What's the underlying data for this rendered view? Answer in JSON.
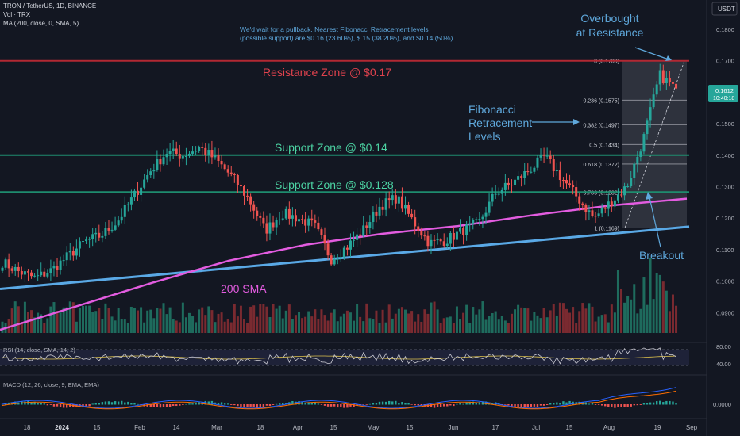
{
  "header": {
    "symbol_line": "TRON / TetherUS, 1D, BINANCE",
    "vol_line": "Vol · TRX",
    "ma_line": "MA (200, close, 0, SMA, 5)",
    "currency_badge": "USDT"
  },
  "annotations": {
    "note_line1": "We'd wait for a pullback. Nearest Fibonacci Retracement levels",
    "note_line2": "(possible support) are $0.16 (23.60%), $.15 (38.20%), and $0.14 (50%).",
    "overbought_line1": "Overbought",
    "overbought_line2": "at Resistance",
    "resistance_label": "Resistance Zone @ $0.17",
    "support1_label": "Support Zone @ $0.14",
    "support2_label": "Support Zone @ $0.128",
    "fib_line1": "Fibonacci",
    "fib_line2": "Retracement",
    "fib_line3": "Levels",
    "breakout": "Breakout",
    "sma_label": "200 SMA"
  },
  "price_badge": {
    "price": "0.1612",
    "countdown": "10:40:18"
  },
  "rsi_panel": {
    "label": "RSI (14, close, SMA, 14, 2)",
    "ticks": [
      "80.00",
      "40.00"
    ]
  },
  "macd_panel": {
    "label": "MACD (12, 26, close, 9, EMA, EMA)",
    "ticks": [
      "0.0000"
    ]
  },
  "colors": {
    "background": "#131722",
    "up": "#26a69a",
    "down": "#ef5350",
    "resistance": "#b22833",
    "support": "#1e8c6e",
    "support_label": "#4cd3a3",
    "annotation": "#5fa8dc",
    "sma": "#e35ce0",
    "trendline": "#5aa9e6",
    "volume_up": "#1e6b5d",
    "volume_down": "#7a2a30"
  },
  "chart_data": {
    "type": "candlestick",
    "x_tick_labels": [
      "18",
      "2024",
      "15",
      "Feb",
      "14",
      "Mar",
      "18",
      "Apr",
      "15",
      "May",
      "15",
      "Jun",
      "17",
      "Jul",
      "15",
      "Aug",
      "19",
      "Sep"
    ],
    "y_tick_labels": [
      "0.1800",
      "0.1700",
      "0.1600",
      "0.1500",
      "0.1400",
      "0.1300",
      "0.1200",
      "0.1100",
      "0.1000",
      "0.0900"
    ],
    "ylim": [
      0.083,
      0.183
    ],
    "grid": false,
    "series": [
      {
        "name": "TRON / TetherUS",
        "anchor_closes": [
          0.106,
          0.103,
          0.101,
          0.1035,
          0.108,
          0.1125,
          0.1145,
          0.119,
          0.127,
          0.135,
          0.141,
          0.14,
          0.1425,
          0.1385,
          0.133,
          0.126,
          0.116,
          0.1215,
          0.12,
          0.1175,
          0.107,
          0.111,
          0.1165,
          0.124,
          0.1265,
          0.119,
          0.112,
          0.113,
          0.116,
          0.1185,
          0.128,
          0.131,
          0.135,
          0.1395,
          0.133,
          0.1265,
          0.12,
          0.125,
          0.13,
          0.145,
          0.1655,
          0.161
        ],
        "last_close": 0.1612
      },
      {
        "name": "MA (200, close, 0, SMA, 5)",
        "anchor_values": [
          0.0845,
          0.092,
          0.0995,
          0.1065,
          0.1115,
          0.115,
          0.1175,
          0.121,
          0.124,
          0.1262
        ]
      }
    ],
    "fibonacci_levels": [
      {
        "label": "0 (0.1700)",
        "value": 0.17
      },
      {
        "label": "0.236 (0.1575)",
        "value": 0.1575
      },
      {
        "label": "0.382 (0.1497)",
        "value": 0.1497
      },
      {
        "label": "0.5 (0.1434)",
        "value": 0.1434
      },
      {
        "label": "0.618 (0.1372)",
        "value": 0.1372
      },
      {
        "label": "0.786 (0.1282)",
        "value": 0.1282
      },
      {
        "label": "1 (0.1169)",
        "value": 0.1169
      }
    ],
    "horizontal_levels": [
      {
        "name": "Resistance Zone @ $0.17",
        "value": 0.17
      },
      {
        "name": "Support Zone @ $0.14",
        "value": 0.14
      },
      {
        "name": "Support Zone @ $0.128",
        "value": 0.1283
      }
    ],
    "trendline": {
      "start": 0.0975,
      "end": 0.1173
    }
  }
}
